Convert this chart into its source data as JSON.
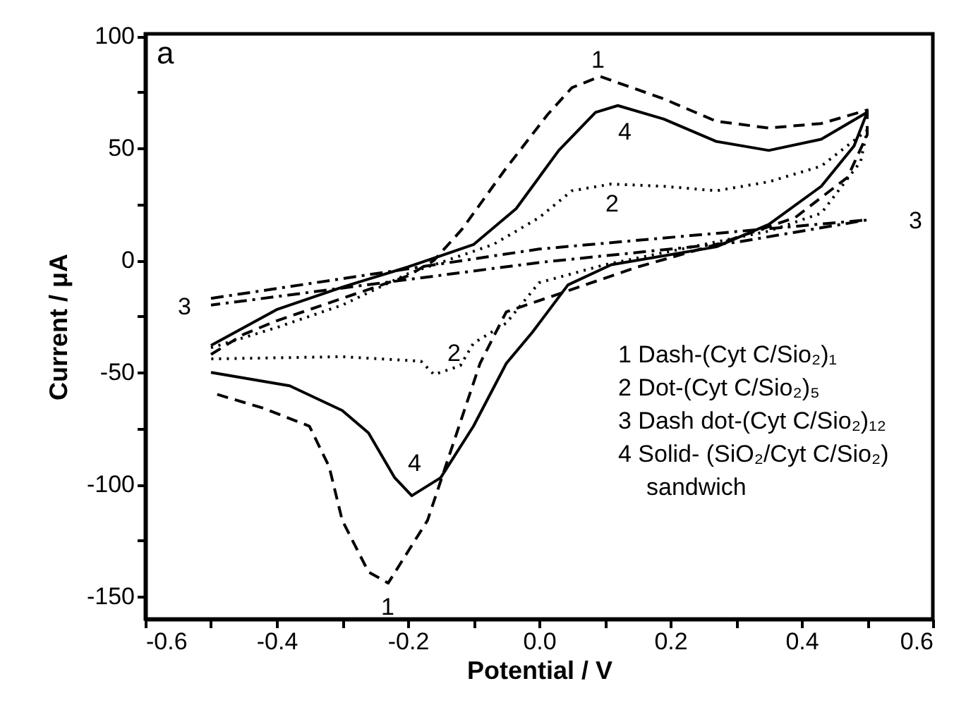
{
  "chart_data": {
    "type": "line",
    "xlabel": "Potential / V",
    "ylabel": "Current / μA",
    "xlim": [
      -0.6,
      0.6
    ],
    "ylim": [
      -160,
      101
    ],
    "xticks": [
      -0.6,
      {
        "value": -0.5,
        "label": null
      },
      -0.4,
      {
        "value": -0.3,
        "label": null
      },
      -0.2,
      {
        "value": -0.1,
        "label": null
      },
      {
        "value": 0,
        "label": "0.0"
      },
      {
        "value": 0.1,
        "label": null
      },
      0.2,
      {
        "value": 0.3,
        "label": null
      },
      0.4,
      {
        "value": 0.5,
        "label": null
      },
      0.6
    ],
    "yticks": [
      -150,
      {
        "value": -125,
        "label": null
      },
      -100,
      {
        "value": -75,
        "label": null
      },
      -50,
      {
        "value": -25,
        "label": null
      },
      0,
      {
        "value": 25,
        "label": null
      },
      50,
      {
        "value": 75,
        "label": null
      },
      100
    ],
    "grid": false,
    "series": [
      {
        "color": "#000000",
        "line_style": "dashed",
        "x": [
          -0.5,
          -0.45,
          -0.4,
          -0.3,
          -0.2,
          -0.16,
          -0.117,
          -0.053,
          0.013,
          0.05,
          0.093,
          0.19,
          0.27,
          0.35,
          0.43,
          0.5,
          0.5,
          0.47,
          0.39,
          0.27,
          0.15,
          -0.05,
          -0.09,
          -0.13,
          -0.17,
          -0.23,
          -0.26,
          -0.3,
          -0.32,
          -0.35,
          -0.42,
          -0.5
        ],
        "values": [
          -42,
          -33,
          -27,
          -17,
          -7,
          0,
          14,
          40,
          65,
          77,
          82,
          72,
          62,
          59,
          61,
          67,
          56,
          37,
          19,
          7,
          -3,
          -23,
          -46,
          -81,
          -116,
          -144,
          -139,
          -116,
          -92,
          -74,
          -66,
          -59
        ]
      },
      {
        "color": "#000000",
        "line_style": "dotted",
        "x": [
          -0.5,
          -0.4,
          -0.3,
          -0.2,
          -0.07,
          0,
          0.05,
          0.11,
          0.19,
          0.27,
          0.35,
          0.43,
          0.5,
          0.49,
          0.43,
          0.35,
          0.1,
          0,
          -0.05,
          -0.1,
          -0.12,
          -0.16,
          -0.18,
          -0.3,
          -0.5
        ],
        "values": [
          -39,
          -30,
          -20,
          -6,
          7,
          19,
          31,
          34,
          33,
          31,
          35,
          42,
          58,
          44,
          21,
          13,
          -2,
          -10,
          -28,
          -37,
          -47,
          -51,
          -45,
          -43,
          -44
        ]
      },
      {
        "color": "#000000",
        "line_style": "dashdot",
        "x": [
          -0.5,
          0,
          0.5,
          0.3,
          0,
          -0.5
        ],
        "values": [
          -17,
          5,
          18,
          8,
          -1,
          -20
        ]
      },
      {
        "color": "#000000",
        "line_style": "solid",
        "x": [
          -0.5,
          -0.4,
          -0.3,
          -0.2,
          -0.15,
          -0.1,
          -0.035,
          0.03,
          0.086,
          0.12,
          0.19,
          0.27,
          0.35,
          0.43,
          0.5,
          0.48,
          0.43,
          0.35,
          0.27,
          0.11,
          0.044,
          -0.01,
          -0.05,
          -0.1,
          -0.15,
          -0.194,
          -0.22,
          -0.26,
          -0.3,
          -0.38,
          -0.5
        ],
        "values": [
          -38,
          -22,
          -12,
          -3,
          2,
          7,
          23,
          49,
          66,
          69,
          63,
          53,
          49,
          54,
          66,
          51,
          33,
          16,
          6,
          -2,
          -11,
          -32,
          -46,
          -74,
          -97,
          -105,
          -97,
          -77,
          -67,
          -56,
          -50
        ]
      }
    ],
    "annotations": [
      "a",
      "1",
      "1",
      "2",
      "2",
      "3",
      "3",
      "4",
      "4",
      "1 Dash-(Cyt C/Sio₂)₁",
      "2 Dot-(Cyt C/Sio₂)₅",
      "3 Dash dot-(Cyt C/Sio₂)₁₂",
      "4 Solid- (SiO₂/Cyt C/Sio₂)",
      "sandwich"
    ]
  }
}
